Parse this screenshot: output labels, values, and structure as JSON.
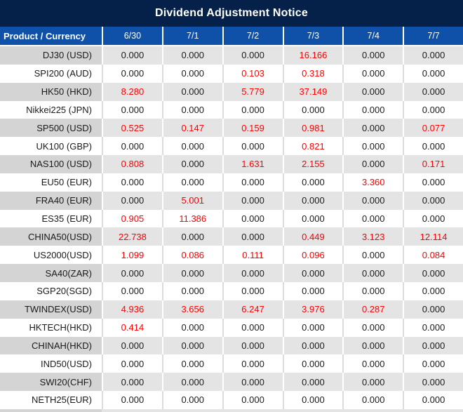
{
  "colors": {
    "title_bg": "#052049",
    "header_bg": "#0F51A8",
    "header_text": "#FFFFFF",
    "product_gray": "#D4D4D4",
    "value_gray": "#E4E4E4",
    "grid_gray": "#DCDCDC",
    "accent_red": "#FF0000",
    "text_dark": "#1A1A1A"
  },
  "chart_data": {
    "type": "table",
    "title": "Dividend Adjustment Notice",
    "columns": [
      "Product / Currency",
      "6/30",
      "7/1",
      "7/2",
      "7/3",
      "7/4",
      "7/7"
    ],
    "zero_display": "0.000",
    "rows": [
      {
        "product": "DJ30 (USD)",
        "values": [
          "0.000",
          "0.000",
          "0.000",
          "16.166",
          "0.000",
          "0.000"
        ]
      },
      {
        "product": "SPI200 (AUD)",
        "values": [
          "0.000",
          "0.000",
          "0.103",
          "0.318",
          "0.000",
          "0.000"
        ]
      },
      {
        "product": "HK50 (HKD)",
        "values": [
          "8.280",
          "0.000",
          "5.779",
          "37.149",
          "0.000",
          "0.000"
        ]
      },
      {
        "product": "Nikkei225 (JPN)",
        "values": [
          "0.000",
          "0.000",
          "0.000",
          "0.000",
          "0.000",
          "0.000"
        ]
      },
      {
        "product": "SP500 (USD)",
        "values": [
          "0.525",
          "0.147",
          "0.159",
          "0.981",
          "0.000",
          "0.077"
        ]
      },
      {
        "product": "UK100 (GBP)",
        "values": [
          "0.000",
          "0.000",
          "0.000",
          "0.821",
          "0.000",
          "0.000"
        ]
      },
      {
        "product": "NAS100 (USD)",
        "values": [
          "0.808",
          "0.000",
          "1.631",
          "2.155",
          "0.000",
          "0.171"
        ]
      },
      {
        "product": "EU50 (EUR)",
        "values": [
          "0.000",
          "0.000",
          "0.000",
          "0.000",
          "3.360",
          "0.000"
        ]
      },
      {
        "product": "FRA40 (EUR)",
        "values": [
          "0.000",
          "5.001",
          "0.000",
          "0.000",
          "0.000",
          "0.000"
        ]
      },
      {
        "product": "ES35 (EUR)",
        "values": [
          "0.905",
          "11.386",
          "0.000",
          "0.000",
          "0.000",
          "0.000"
        ]
      },
      {
        "product": "CHINA50(USD)",
        "values": [
          "22.738",
          "0.000",
          "0.000",
          "0.449",
          "3.123",
          "12.114"
        ]
      },
      {
        "product": "US2000(USD)",
        "values": [
          "1.099",
          "0.086",
          "0.111",
          "0.096",
          "0.000",
          "0.084"
        ]
      },
      {
        "product": "SA40(ZAR)",
        "values": [
          "0.000",
          "0.000",
          "0.000",
          "0.000",
          "0.000",
          "0.000"
        ]
      },
      {
        "product": "SGP20(SGD)",
        "values": [
          "0.000",
          "0.000",
          "0.000",
          "0.000",
          "0.000",
          "0.000"
        ]
      },
      {
        "product": "TWINDEX(USD)",
        "values": [
          "4.936",
          "3.656",
          "6.247",
          "3.976",
          "0.287",
          "0.000"
        ]
      },
      {
        "product": "HKTECH(HKD)",
        "values": [
          "0.414",
          "0.000",
          "0.000",
          "0.000",
          "0.000",
          "0.000"
        ]
      },
      {
        "product": "CHINAH(HKD)",
        "values": [
          "0.000",
          "0.000",
          "0.000",
          "0.000",
          "0.000",
          "0.000"
        ]
      },
      {
        "product": "IND50(USD)",
        "values": [
          "0.000",
          "0.000",
          "0.000",
          "0.000",
          "0.000",
          "0.000"
        ]
      },
      {
        "product": "SWI20(CHF)",
        "values": [
          "0.000",
          "0.000",
          "0.000",
          "0.000",
          "0.000",
          "0.000"
        ]
      },
      {
        "product": "NETH25(EUR)",
        "values": [
          "0.000",
          "0.000",
          "0.000",
          "0.000",
          "0.000",
          "0.000"
        ]
      }
    ]
  }
}
